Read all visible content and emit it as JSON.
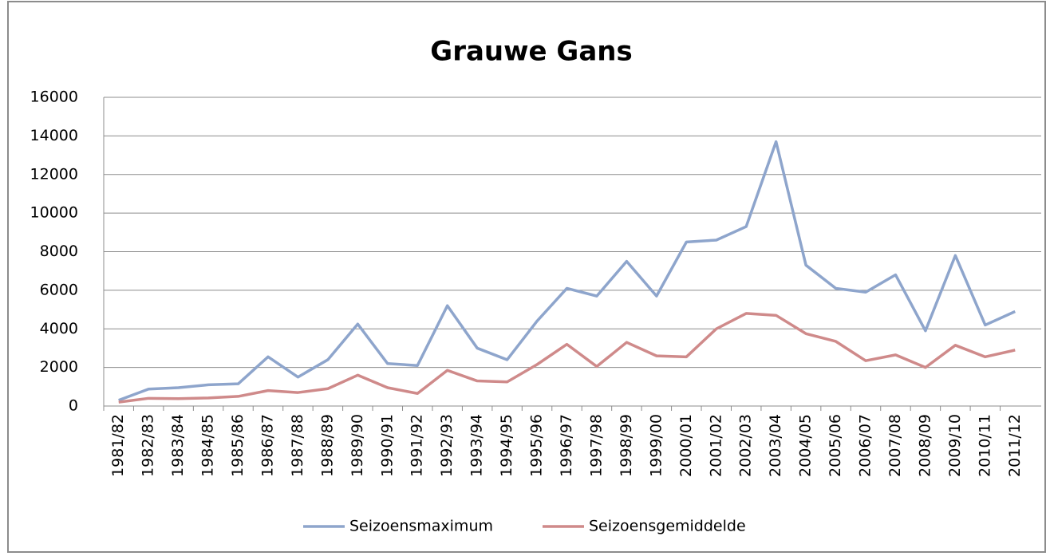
{
  "chart_data": {
    "type": "line",
    "title": "Grauwe Gans",
    "categories": [
      "1981/82",
      "1982/83",
      "1983/84",
      "1984/85",
      "1985/86",
      "1986/87",
      "1987/88",
      "1988/89",
      "1989/90",
      "1990/91",
      "1991/92",
      "1992/93",
      "1993/94",
      "1994/95",
      "1995/96",
      "1996/97",
      "1997/98",
      "1998/99",
      "1999/00",
      "2000/01",
      "2001/02",
      "2002/03",
      "2003/04",
      "2004/05",
      "2005/06",
      "2006/07",
      "2007/08",
      "2008/09",
      "2009/10",
      "2010/11",
      "2011/12"
    ],
    "series": [
      {
        "name": "Seizoensmaximum",
        "color": "#8ea5cc",
        "values": [
          300,
          880,
          950,
          1100,
          1150,
          2550,
          1500,
          2400,
          4250,
          2200,
          2100,
          5200,
          3000,
          2400,
          4400,
          6100,
          5700,
          7500,
          5700,
          8500,
          8600,
          9300,
          13700,
          7300,
          6100,
          5900,
          6800,
          3900,
          7800,
          4200,
          4900
        ]
      },
      {
        "name": "Seizoensgemiddelde",
        "color": "#cf8a8a",
        "values": [
          200,
          400,
          380,
          420,
          500,
          800,
          700,
          900,
          1600,
          950,
          650,
          1850,
          1300,
          1250,
          2150,
          3200,
          2050,
          3300,
          2600,
          2550,
          4000,
          4800,
          4700,
          3750,
          3350,
          2350,
          2650,
          2000,
          3150,
          2550,
          2900
        ]
      }
    ],
    "ylim": [
      0,
      16000
    ],
    "yticks": [
      0,
      2000,
      4000,
      6000,
      8000,
      10000,
      12000,
      14000,
      16000
    ],
    "grid": true,
    "legend": "bottom"
  }
}
